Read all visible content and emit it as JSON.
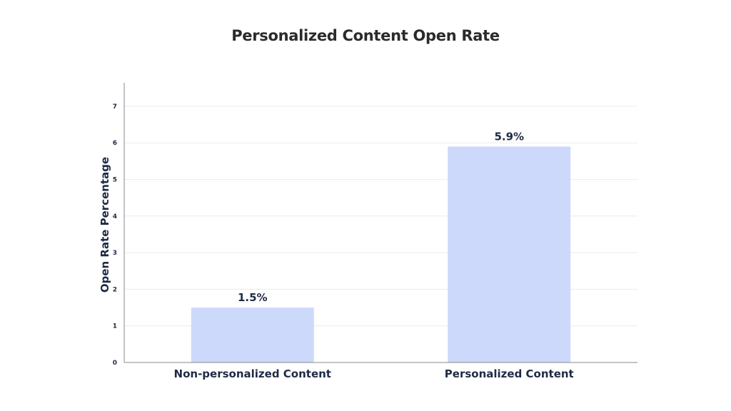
{
  "chart_data": {
    "type": "bar",
    "title": "Personalized Content Open Rate",
    "xlabel": "",
    "ylabel": "Open Rate Percentage",
    "categories": [
      "Non-personalized Content",
      "Personalized Content"
    ],
    "values": [
      1.5,
      5.9
    ],
    "data_labels": [
      "1.5%",
      "5.9%"
    ],
    "ylim": [
      0,
      7
    ],
    "yticks": [
      "0",
      "1",
      "2",
      "3",
      "4",
      "5",
      "6",
      "7"
    ],
    "grid": true,
    "legend": "none",
    "colors": {
      "bar": "#cdd9fb",
      "text": "#1f2a44",
      "grid": "#ececec",
      "axis": "#8a8a8a"
    }
  }
}
